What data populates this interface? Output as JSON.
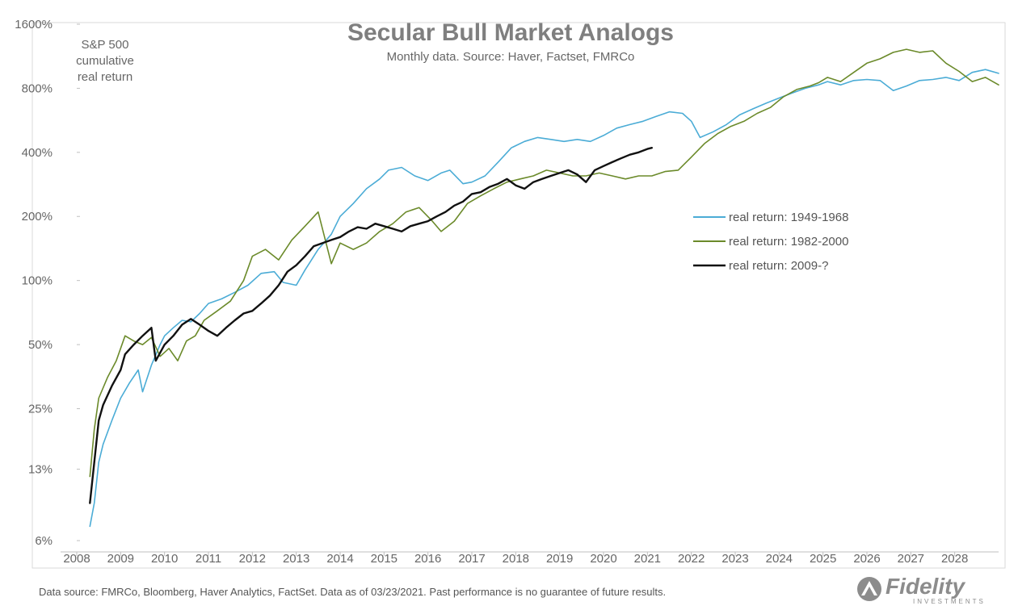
{
  "chart_data": {
    "type": "line",
    "title": "Secular Bull Market Analogs",
    "subtitle": "Monthly data.  Source: Haver, Factset, FMRCo",
    "ylabel_lines": [
      "S&P 500",
      "cumulative",
      "real return"
    ],
    "y_scale": "log",
    "ylim": [
      6,
      1600
    ],
    "xlim": [
      2008.0,
      2029.0
    ],
    "y_ticks": [
      {
        "value": 6,
        "label": "6%"
      },
      {
        "value": 13,
        "label": "13%"
      },
      {
        "value": 25,
        "label": "25%"
      },
      {
        "value": 50,
        "label": "50%"
      },
      {
        "value": 100,
        "label": "100%"
      },
      {
        "value": 200,
        "label": "200%"
      },
      {
        "value": 400,
        "label": "400%"
      },
      {
        "value": 800,
        "label": "800%"
      },
      {
        "value": 1600,
        "label": "1600%"
      }
    ],
    "x_ticks": [
      "2008",
      "2009",
      "2010",
      "2011",
      "2012",
      "2013",
      "2014",
      "2015",
      "2016",
      "2017",
      "2018",
      "2019",
      "2020",
      "2021",
      "2022",
      "2023",
      "2024",
      "2025",
      "2026",
      "2027",
      "2028"
    ],
    "series": [
      {
        "name": "real return: 1949-1968",
        "color": "#4bacd6",
        "width": 1.6,
        "points": [
          [
            2008.3,
            7
          ],
          [
            2008.4,
            9
          ],
          [
            2008.5,
            14
          ],
          [
            2008.6,
            17
          ],
          [
            2008.8,
            22
          ],
          [
            2009.0,
            28
          ],
          [
            2009.2,
            33
          ],
          [
            2009.4,
            38
          ],
          [
            2009.5,
            30
          ],
          [
            2009.7,
            40
          ],
          [
            2009.9,
            50
          ],
          [
            2010.0,
            55
          ],
          [
            2010.2,
            60
          ],
          [
            2010.4,
            65
          ],
          [
            2010.6,
            64
          ],
          [
            2010.8,
            70
          ],
          [
            2011.0,
            78
          ],
          [
            2011.3,
            82
          ],
          [
            2011.6,
            88
          ],
          [
            2011.9,
            95
          ],
          [
            2012.2,
            108
          ],
          [
            2012.5,
            110
          ],
          [
            2012.7,
            98
          ],
          [
            2013.0,
            95
          ],
          [
            2013.2,
            112
          ],
          [
            2013.5,
            140
          ],
          [
            2013.8,
            165
          ],
          [
            2014.0,
            200
          ],
          [
            2014.3,
            230
          ],
          [
            2014.6,
            270
          ],
          [
            2014.9,
            300
          ],
          [
            2015.1,
            330
          ],
          [
            2015.4,
            340
          ],
          [
            2015.7,
            310
          ],
          [
            2016.0,
            295
          ],
          [
            2016.3,
            320
          ],
          [
            2016.5,
            330
          ],
          [
            2016.8,
            285
          ],
          [
            2017.0,
            290
          ],
          [
            2017.3,
            310
          ],
          [
            2017.6,
            360
          ],
          [
            2017.9,
            420
          ],
          [
            2018.2,
            450
          ],
          [
            2018.5,
            470
          ],
          [
            2018.8,
            460
          ],
          [
            2019.1,
            450
          ],
          [
            2019.4,
            460
          ],
          [
            2019.7,
            450
          ],
          [
            2020.0,
            480
          ],
          [
            2020.3,
            520
          ],
          [
            2020.6,
            540
          ],
          [
            2020.9,
            560
          ],
          [
            2021.2,
            590
          ],
          [
            2021.5,
            620
          ],
          [
            2021.8,
            610
          ],
          [
            2022.0,
            560
          ],
          [
            2022.2,
            470
          ],
          [
            2022.5,
            500
          ],
          [
            2022.8,
            540
          ],
          [
            2023.1,
            600
          ],
          [
            2023.4,
            640
          ],
          [
            2023.7,
            680
          ],
          [
            2024.0,
            720
          ],
          [
            2024.3,
            760
          ],
          [
            2024.6,
            800
          ],
          [
            2024.9,
            830
          ],
          [
            2025.1,
            860
          ],
          [
            2025.4,
            830
          ],
          [
            2025.7,
            870
          ],
          [
            2026.0,
            880
          ],
          [
            2026.3,
            870
          ],
          [
            2026.6,
            780
          ],
          [
            2026.9,
            820
          ],
          [
            2027.2,
            870
          ],
          [
            2027.5,
            880
          ],
          [
            2027.8,
            900
          ],
          [
            2028.1,
            870
          ],
          [
            2028.4,
            950
          ],
          [
            2028.7,
            980
          ],
          [
            2029.0,
            940
          ]
        ]
      },
      {
        "name": "real return: 1982-2000",
        "color": "#6b8a2a",
        "width": 1.6,
        "points": [
          [
            2008.3,
            12
          ],
          [
            2008.4,
            20
          ],
          [
            2008.5,
            28
          ],
          [
            2008.7,
            35
          ],
          [
            2008.9,
            42
          ],
          [
            2009.1,
            55
          ],
          [
            2009.3,
            52
          ],
          [
            2009.5,
            50
          ],
          [
            2009.7,
            54
          ],
          [
            2009.9,
            44
          ],
          [
            2010.1,
            48
          ],
          [
            2010.3,
            42
          ],
          [
            2010.5,
            52
          ],
          [
            2010.7,
            55
          ],
          [
            2010.9,
            65
          ],
          [
            2011.2,
            72
          ],
          [
            2011.5,
            80
          ],
          [
            2011.8,
            100
          ],
          [
            2012.0,
            130
          ],
          [
            2012.3,
            140
          ],
          [
            2012.6,
            125
          ],
          [
            2012.9,
            155
          ],
          [
            2013.2,
            180
          ],
          [
            2013.5,
            210
          ],
          [
            2013.8,
            120
          ],
          [
            2014.0,
            150
          ],
          [
            2014.3,
            140
          ],
          [
            2014.6,
            150
          ],
          [
            2014.9,
            170
          ],
          [
            2015.2,
            185
          ],
          [
            2015.5,
            210
          ],
          [
            2015.8,
            220
          ],
          [
            2016.1,
            190
          ],
          [
            2016.3,
            170
          ],
          [
            2016.6,
            190
          ],
          [
            2016.9,
            230
          ],
          [
            2017.2,
            250
          ],
          [
            2017.5,
            270
          ],
          [
            2017.8,
            290
          ],
          [
            2018.1,
            300
          ],
          [
            2018.4,
            310
          ],
          [
            2018.7,
            330
          ],
          [
            2019.0,
            320
          ],
          [
            2019.3,
            310
          ],
          [
            2019.6,
            310
          ],
          [
            2019.9,
            320
          ],
          [
            2020.2,
            310
          ],
          [
            2020.5,
            300
          ],
          [
            2020.8,
            310
          ],
          [
            2021.1,
            310
          ],
          [
            2021.4,
            325
          ],
          [
            2021.7,
            330
          ],
          [
            2022.0,
            380
          ],
          [
            2022.3,
            440
          ],
          [
            2022.6,
            490
          ],
          [
            2022.9,
            530
          ],
          [
            2023.2,
            560
          ],
          [
            2023.5,
            610
          ],
          [
            2023.8,
            650
          ],
          [
            2024.1,
            730
          ],
          [
            2024.4,
            790
          ],
          [
            2024.7,
            820
          ],
          [
            2024.9,
            850
          ],
          [
            2025.1,
            900
          ],
          [
            2025.4,
            860
          ],
          [
            2025.7,
            950
          ],
          [
            2026.0,
            1050
          ],
          [
            2026.3,
            1100
          ],
          [
            2026.6,
            1180
          ],
          [
            2026.9,
            1220
          ],
          [
            2027.2,
            1180
          ],
          [
            2027.5,
            1200
          ],
          [
            2027.8,
            1050
          ],
          [
            2028.1,
            960
          ],
          [
            2028.4,
            860
          ],
          [
            2028.7,
            900
          ],
          [
            2029.0,
            830
          ]
        ]
      },
      {
        "name": "real return: 2009-?",
        "color": "#111111",
        "width": 2.4,
        "points": [
          [
            2008.3,
            9
          ],
          [
            2008.4,
            14
          ],
          [
            2008.5,
            22
          ],
          [
            2008.6,
            26
          ],
          [
            2008.8,
            32
          ],
          [
            2009.0,
            38
          ],
          [
            2009.1,
            45
          ],
          [
            2009.3,
            50
          ],
          [
            2009.5,
            55
          ],
          [
            2009.7,
            60
          ],
          [
            2009.8,
            42
          ],
          [
            2010.0,
            50
          ],
          [
            2010.2,
            55
          ],
          [
            2010.4,
            62
          ],
          [
            2010.6,
            66
          ],
          [
            2010.8,
            62
          ],
          [
            2011.0,
            58
          ],
          [
            2011.2,
            55
          ],
          [
            2011.4,
            60
          ],
          [
            2011.6,
            65
          ],
          [
            2011.8,
            70
          ],
          [
            2012.0,
            72
          ],
          [
            2012.2,
            78
          ],
          [
            2012.4,
            85
          ],
          [
            2012.6,
            95
          ],
          [
            2012.8,
            110
          ],
          [
            2013.0,
            118
          ],
          [
            2013.2,
            130
          ],
          [
            2013.4,
            145
          ],
          [
            2013.6,
            150
          ],
          [
            2013.8,
            155
          ],
          [
            2014.0,
            160
          ],
          [
            2014.2,
            170
          ],
          [
            2014.4,
            178
          ],
          [
            2014.6,
            175
          ],
          [
            2014.8,
            185
          ],
          [
            2015.0,
            180
          ],
          [
            2015.2,
            175
          ],
          [
            2015.4,
            170
          ],
          [
            2015.6,
            180
          ],
          [
            2015.8,
            185
          ],
          [
            2016.0,
            190
          ],
          [
            2016.2,
            200
          ],
          [
            2016.4,
            210
          ],
          [
            2016.6,
            225
          ],
          [
            2016.8,
            235
          ],
          [
            2017.0,
            255
          ],
          [
            2017.2,
            260
          ],
          [
            2017.4,
            275
          ],
          [
            2017.6,
            285
          ],
          [
            2017.8,
            300
          ],
          [
            2018.0,
            280
          ],
          [
            2018.2,
            270
          ],
          [
            2018.4,
            290
          ],
          [
            2018.6,
            300
          ],
          [
            2018.8,
            310
          ],
          [
            2019.0,
            320
          ],
          [
            2019.2,
            330
          ],
          [
            2019.4,
            315
          ],
          [
            2019.6,
            290
          ],
          [
            2019.8,
            330
          ],
          [
            2020.0,
            345
          ],
          [
            2020.2,
            360
          ],
          [
            2020.4,
            375
          ],
          [
            2020.6,
            390
          ],
          [
            2020.8,
            400
          ],
          [
            2021.0,
            415
          ],
          [
            2021.1,
            420
          ]
        ]
      }
    ],
    "legend": {
      "position": "right-middle",
      "entries": [
        "real return: 1949-1968",
        "real return: 1982-2000",
        "real return: 2009-?"
      ]
    }
  },
  "footer": {
    "note": "Data source: FMRCo, Bloomberg, Haver Analytics, FactSet. Data as of 03/23/2021. Past performance is no guarantee of future results."
  },
  "brand": {
    "logo_text": "Fidelity",
    "logo_sub": "INVESTMENTS",
    "logo_color": "#8c8c8c"
  }
}
